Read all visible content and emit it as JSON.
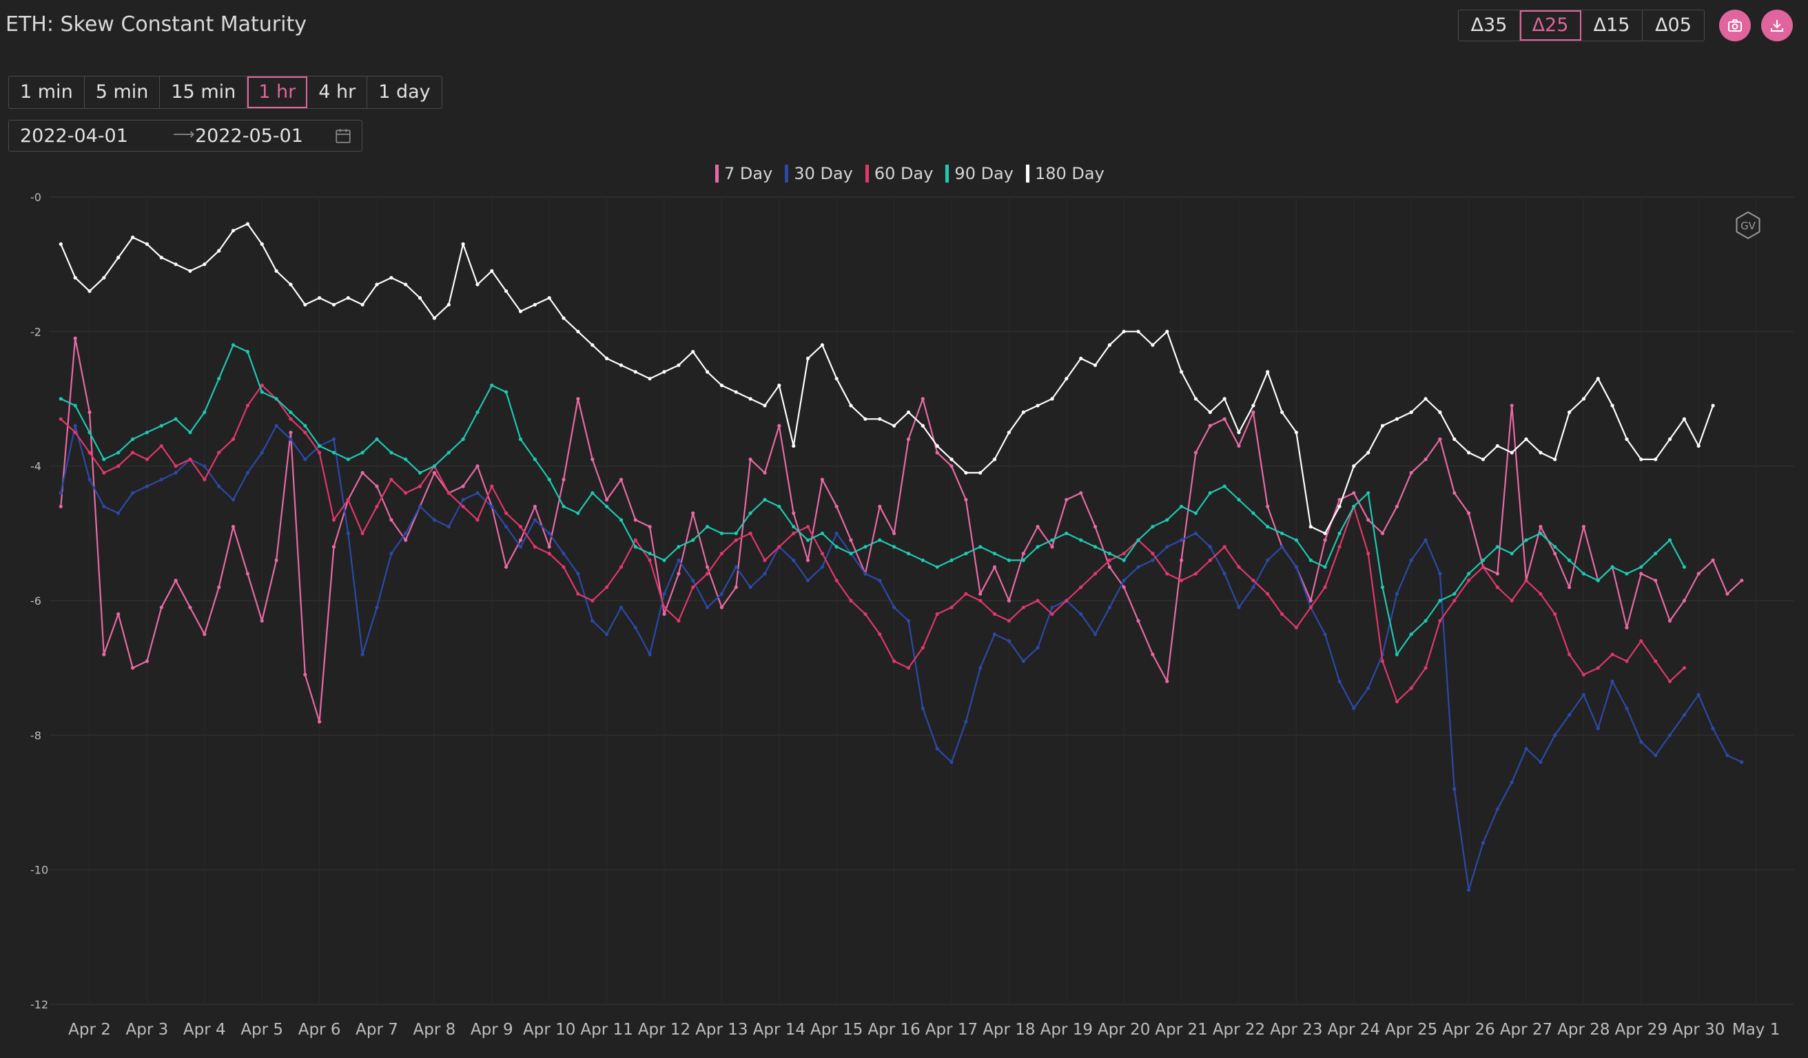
{
  "title": "ETH: Skew Constant Maturity",
  "delta_buttons": [
    {
      "label": "Δ35",
      "active": false
    },
    {
      "label": "Δ25",
      "active": true
    },
    {
      "label": "Δ15",
      "active": false
    },
    {
      "label": "Δ05",
      "active": false
    }
  ],
  "timeframes": [
    {
      "label": "1 min",
      "active": false
    },
    {
      "label": "5 min",
      "active": false
    },
    {
      "label": "15 min",
      "active": false
    },
    {
      "label": "1 hr",
      "active": true
    },
    {
      "label": "4 hr",
      "active": false
    },
    {
      "label": "1 day",
      "active": false
    }
  ],
  "date_range": {
    "start": "2022-04-01",
    "end": "2022-05-01"
  },
  "accent_color": "#e0659d",
  "watermark": "GV",
  "chart_data": {
    "type": "line",
    "title": "",
    "xlabel": "",
    "ylabel": "",
    "ylim": [
      -12,
      0
    ],
    "y_ticks": [
      0,
      -2,
      -4,
      -6,
      -8,
      -10,
      -12
    ],
    "y_tick_labels": [
      "-0",
      "-2",
      "-4",
      "-6",
      "-8",
      "-10",
      "-12"
    ],
    "x_ticks": [
      "Apr 2",
      "Apr 3",
      "Apr 4",
      "Apr 5",
      "Apr 6",
      "Apr 7",
      "Apr 8",
      "Apr 9",
      "Apr 10",
      "Apr 11",
      "Apr 12",
      "Apr 13",
      "Apr 14",
      "Apr 15",
      "Apr 16",
      "Apr 17",
      "Apr 18",
      "Apr 19",
      "Apr 20",
      "Apr 21",
      "Apr 22",
      "Apr 23",
      "Apr 24",
      "Apr 25",
      "Apr 26",
      "Apr 27",
      "Apr 28",
      "Apr 29",
      "Apr 30",
      "May 1"
    ],
    "x_start": "Apr 1 12:00",
    "x_step": "6h",
    "grid": true,
    "legend_position": "top-center",
    "series": [
      {
        "name": "7 Day",
        "color": "#e86aa5",
        "values": [
          -4.6,
          -2.1,
          -3.2,
          -6.8,
          -6.2,
          -7.0,
          -6.9,
          -6.1,
          -5.7,
          -6.1,
          -6.5,
          -5.8,
          -4.9,
          -5.6,
          -6.3,
          -5.4,
          -3.5,
          -7.1,
          -7.8,
          -5.2,
          -4.5,
          -4.1,
          -4.3,
          -4.8,
          -5.1,
          -4.6,
          -4.1,
          -4.4,
          -4.3,
          -4.0,
          -4.6,
          -5.5,
          -5.1,
          -4.6,
          -5.2,
          -4.2,
          -3.0,
          -3.9,
          -4.5,
          -4.2,
          -4.8,
          -4.9,
          -6.2,
          -5.6,
          -4.7,
          -5.5,
          -6.1,
          -5.8,
          -3.9,
          -4.1,
          -3.4,
          -4.7,
          -5.4,
          -4.2,
          -4.6,
          -5.1,
          -5.6,
          -4.6,
          -5.0,
          -3.6,
          -3.0,
          -3.8,
          -4.0,
          -4.5,
          -5.9,
          -5.5,
          -6.0,
          -5.3,
          -4.9,
          -5.2,
          -4.5,
          -4.4,
          -4.9,
          -5.5,
          -5.8,
          -6.3,
          -6.8,
          -7.2,
          -5.4,
          -3.8,
          -3.4,
          -3.3,
          -3.7,
          -3.2,
          -4.6,
          -5.2,
          -5.5,
          -6.0,
          -5.1,
          -4.5,
          -4.4,
          -4.8,
          -5.0,
          -4.6,
          -4.1,
          -3.9,
          -3.6,
          -4.4,
          -4.7,
          -5.5,
          -5.6,
          -3.1,
          -5.7,
          -4.9,
          -5.3,
          -5.8,
          -4.9,
          -5.7,
          -5.5,
          -6.4,
          -5.6,
          -5.7,
          -6.3,
          -6.0,
          -5.6,
          -5.4,
          -5.9,
          -5.7
        ]
      },
      {
        "name": "30 Day",
        "color": "#2b4aa8",
        "values": [
          -4.4,
          -3.4,
          -4.2,
          -4.6,
          -4.7,
          -4.4,
          -4.3,
          -4.2,
          -4.1,
          -3.9,
          -4.0,
          -4.3,
          -4.5,
          -4.1,
          -3.8,
          -3.4,
          -3.6,
          -3.9,
          -3.7,
          -3.6,
          -5.0,
          -6.8,
          -6.1,
          -5.3,
          -5.0,
          -4.6,
          -4.8,
          -4.9,
          -4.5,
          -4.4,
          -4.6,
          -4.9,
          -5.2,
          -4.8,
          -5.0,
          -5.3,
          -5.6,
          -6.3,
          -6.5,
          -6.1,
          -6.4,
          -6.8,
          -5.9,
          -5.4,
          -5.7,
          -6.1,
          -5.9,
          -5.5,
          -5.8,
          -5.6,
          -5.2,
          -5.4,
          -5.7,
          -5.5,
          -5.0,
          -5.3,
          -5.6,
          -5.7,
          -6.1,
          -6.3,
          -7.6,
          -8.2,
          -8.4,
          -7.8,
          -7.0,
          -6.5,
          -6.6,
          -6.9,
          -6.7,
          -6.1,
          -6.0,
          -6.2,
          -6.5,
          -6.1,
          -5.7,
          -5.5,
          -5.4,
          -5.2,
          -5.1,
          -5.0,
          -5.2,
          -5.6,
          -6.1,
          -5.8,
          -5.4,
          -5.2,
          -5.5,
          -6.1,
          -6.5,
          -7.2,
          -7.6,
          -7.3,
          -6.8,
          -5.9,
          -5.4,
          -5.1,
          -5.6,
          -8.8,
          -10.3,
          -9.6,
          -9.1,
          -8.7,
          -8.2,
          -8.4,
          -8.0,
          -7.7,
          -7.4,
          -7.9,
          -7.2,
          -7.6,
          -8.1,
          -8.3,
          -8.0,
          -7.7,
          -7.4,
          -7.9,
          -8.3,
          -8.4
        ]
      },
      {
        "name": "60 Day",
        "color": "#e0386a",
        "values": [
          -3.3,
          -3.5,
          -3.8,
          -4.1,
          -4.0,
          -3.8,
          -3.9,
          -3.7,
          -4.0,
          -3.9,
          -4.2,
          -3.8,
          -3.6,
          -3.1,
          -2.8,
          -3.0,
          -3.3,
          -3.5,
          -3.8,
          -4.8,
          -4.5,
          -5.0,
          -4.6,
          -4.2,
          -4.4,
          -4.3,
          -4.0,
          -4.4,
          -4.6,
          -4.8,
          -4.3,
          -4.7,
          -4.9,
          -5.2,
          -5.3,
          -5.5,
          -5.9,
          -6.0,
          -5.8,
          -5.5,
          -5.1,
          -5.4,
          -6.1,
          -6.3,
          -5.8,
          -5.6,
          -5.3,
          -5.1,
          -5.0,
          -5.4,
          -5.2,
          -5.0,
          -4.9,
          -5.3,
          -5.7,
          -6.0,
          -6.2,
          -6.5,
          -6.9,
          -7.0,
          -6.7,
          -6.2,
          -6.1,
          -5.9,
          -6.0,
          -6.2,
          -6.3,
          -6.1,
          -6.0,
          -6.2,
          -6.0,
          -5.8,
          -5.6,
          -5.4,
          -5.3,
          -5.1,
          -5.3,
          -5.6,
          -5.7,
          -5.6,
          -5.4,
          -5.2,
          -5.5,
          -5.7,
          -5.9,
          -6.2,
          -6.4,
          -6.1,
          -5.8,
          -5.2,
          -4.6,
          -5.3,
          -6.9,
          -7.5,
          -7.3,
          -7.0,
          -6.3,
          -6.0,
          -5.7,
          -5.5,
          -5.8,
          -6.0,
          -5.7,
          -5.9,
          -6.2,
          -6.8,
          -7.1,
          -7.0,
          -6.8,
          -6.9,
          -6.6,
          -6.9,
          -7.2,
          -7.0
        ]
      },
      {
        "name": "90 Day",
        "color": "#1ec9b0",
        "values": [
          -3.0,
          -3.1,
          -3.5,
          -3.9,
          -3.8,
          -3.6,
          -3.5,
          -3.4,
          -3.3,
          -3.5,
          -3.2,
          -2.7,
          -2.2,
          -2.3,
          -2.9,
          -3.0,
          -3.2,
          -3.4,
          -3.7,
          -3.8,
          -3.9,
          -3.8,
          -3.6,
          -3.8,
          -3.9,
          -4.1,
          -4.0,
          -3.8,
          -3.6,
          -3.2,
          -2.8,
          -2.9,
          -3.6,
          -3.9,
          -4.2,
          -4.6,
          -4.7,
          -4.4,
          -4.6,
          -4.8,
          -5.2,
          -5.3,
          -5.4,
          -5.2,
          -5.1,
          -4.9,
          -5.0,
          -5.0,
          -4.7,
          -4.5,
          -4.6,
          -4.9,
          -5.1,
          -5.0,
          -5.2,
          -5.3,
          -5.2,
          -5.1,
          -5.2,
          -5.3,
          -5.4,
          -5.5,
          -5.4,
          -5.3,
          -5.2,
          -5.3,
          -5.4,
          -5.4,
          -5.2,
          -5.1,
          -5.0,
          -5.1,
          -5.2,
          -5.3,
          -5.4,
          -5.1,
          -4.9,
          -4.8,
          -4.6,
          -4.7,
          -4.4,
          -4.3,
          -4.5,
          -4.7,
          -4.9,
          -5.0,
          -5.1,
          -5.4,
          -5.5,
          -5.0,
          -4.6,
          -4.4,
          -5.8,
          -6.8,
          -6.5,
          -6.3,
          -6.0,
          -5.9,
          -5.6,
          -5.4,
          -5.2,
          -5.3,
          -5.1,
          -5.0,
          -5.2,
          -5.4,
          -5.6,
          -5.7,
          -5.5,
          -5.6,
          -5.5,
          -5.3,
          -5.1,
          -5.5
        ]
      },
      {
        "name": "180 Day",
        "color": "#ffffff",
        "values": [
          -0.7,
          -1.2,
          -1.4,
          -1.2,
          -0.9,
          -0.6,
          -0.7,
          -0.9,
          -1.0,
          -1.1,
          -1.0,
          -0.8,
          -0.5,
          -0.4,
          -0.7,
          -1.1,
          -1.3,
          -1.6,
          -1.5,
          -1.6,
          -1.5,
          -1.6,
          -1.3,
          -1.2,
          -1.3,
          -1.5,
          -1.8,
          -1.6,
          -0.7,
          -1.3,
          -1.1,
          -1.4,
          -1.7,
          -1.6,
          -1.5,
          -1.8,
          -2.0,
          -2.2,
          -2.4,
          -2.5,
          -2.6,
          -2.7,
          -2.6,
          -2.5,
          -2.3,
          -2.6,
          -2.8,
          -2.9,
          -3.0,
          -3.1,
          -2.8,
          -3.7,
          -2.4,
          -2.2,
          -2.7,
          -3.1,
          -3.3,
          -3.3,
          -3.4,
          -3.2,
          -3.4,
          -3.7,
          -3.9,
          -4.1,
          -4.1,
          -3.9,
          -3.5,
          -3.2,
          -3.1,
          -3.0,
          -2.7,
          -2.4,
          -2.5,
          -2.2,
          -2.0,
          -2.0,
          -2.2,
          -2.0,
          -2.6,
          -3.0,
          -3.2,
          -3.0,
          -3.5,
          -3.1,
          -2.6,
          -3.2,
          -3.5,
          -4.9,
          -5.0,
          -4.6,
          -4.0,
          -3.8,
          -3.4,
          -3.3,
          -3.2,
          -3.0,
          -3.2,
          -3.6,
          -3.8,
          -3.9,
          -3.7,
          -3.8,
          -3.6,
          -3.8,
          -3.9,
          -3.2,
          -3.0,
          -2.7,
          -3.1,
          -3.6,
          -3.9,
          -3.9,
          -3.6,
          -3.3,
          -3.7,
          -3.1
        ]
      }
    ]
  }
}
